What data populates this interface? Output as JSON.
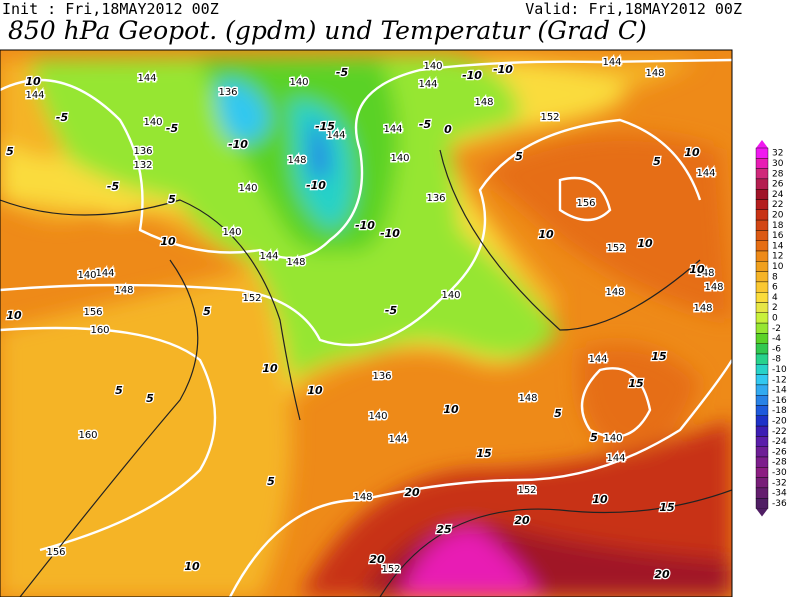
{
  "header": {
    "init": "Init : Fri,18MAY2012 00Z",
    "valid": "Valid: Fri,18MAY2012 00Z",
    "title": "850 hPa Geopot. (gpdm) und Temperatur (Grad C)"
  },
  "colorbar": {
    "values": [
      32,
      30,
      28,
      26,
      24,
      22,
      20,
      18,
      16,
      14,
      12,
      10,
      8,
      6,
      4,
      2,
      0,
      -2,
      -4,
      -6,
      -8,
      -10,
      -12,
      -14,
      -16,
      -18,
      -20,
      -22,
      -24,
      -26,
      -28,
      -30,
      -32,
      -34,
      -36
    ],
    "colors": [
      "#f018f0",
      "#e81cb4",
      "#d0287a",
      "#b41e50",
      "#a01428",
      "#b41e1e",
      "#c83214",
      "#d24614",
      "#dc5a14",
      "#e66e14",
      "#ee8a18",
      "#f0a01e",
      "#f5b428",
      "#fac832",
      "#fadc3c",
      "#e6e646",
      "#c8f03c",
      "#96e632",
      "#5ad228",
      "#32c850",
      "#28d28c",
      "#28d2c8",
      "#32c8f0",
      "#32aaf0",
      "#2882e6",
      "#1e5adc",
      "#1e32c8",
      "#3c1eb4",
      "#5a1eaa",
      "#6e1e96",
      "#7d1e8c",
      "#8c1e82",
      "#781e78",
      "#641e6e",
      "#501e64"
    ]
  },
  "geopotential_labels": [
    144,
    144,
    140,
    136,
    132,
    136,
    140,
    148,
    140,
    144,
    144,
    140,
    140,
    144,
    144,
    148,
    152,
    148,
    156,
    152,
    148,
    144,
    140,
    144,
    148,
    140,
    136,
    140,
    144,
    148,
    152,
    156,
    160,
    148,
    144,
    140,
    160,
    136,
    140,
    144,
    148,
    152,
    156,
    152,
    144,
    148,
    148,
    148
  ],
  "temperature_labels": [
    10,
    -5,
    5,
    -5,
    -5,
    5,
    10,
    10,
    5,
    5,
    5,
    10,
    10,
    -10,
    -10,
    -15,
    -5,
    -10,
    -10,
    -5,
    0,
    -5,
    5,
    10,
    10,
    10,
    5,
    15,
    15,
    10,
    5,
    5,
    15,
    10,
    20,
    25,
    20,
    20,
    10,
    15,
    20,
    10,
    5,
    -10,
    -10
  ]
}
